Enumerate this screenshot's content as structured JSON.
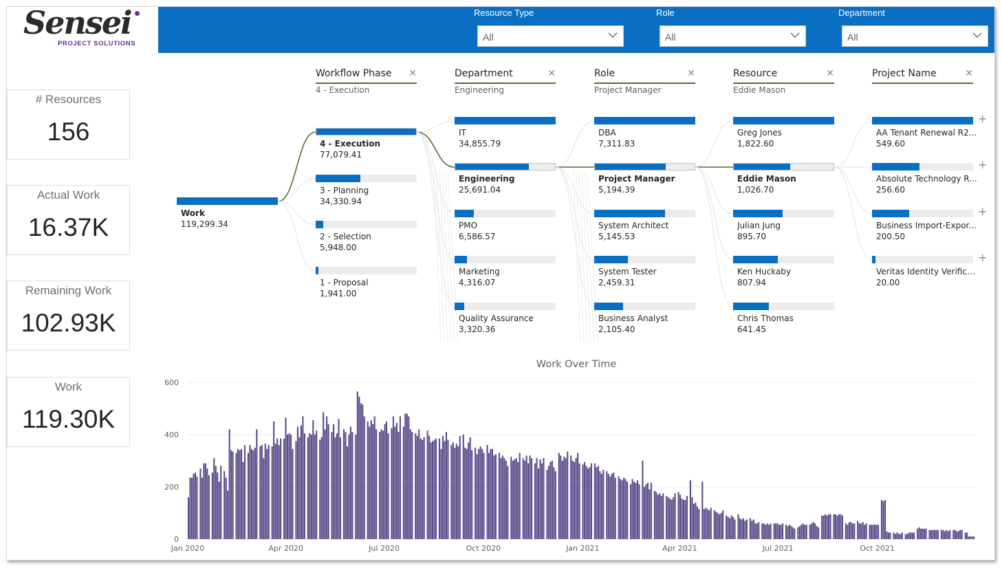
{
  "logo": {
    "text": "Sensei",
    "sub": "PROJECT SOLUTIONS"
  },
  "filters": [
    {
      "label": "Resource Type",
      "value": "All"
    },
    {
      "label": "Role",
      "value": "All"
    },
    {
      "label": "Department",
      "value": "All"
    }
  ],
  "kpis": [
    {
      "label": "# Resources",
      "value": "156"
    },
    {
      "label": "Actual Work",
      "value": "16.37K"
    },
    {
      "label": "Remaining Work",
      "value": "102.93K"
    },
    {
      "label": "Work",
      "value": "119.30K"
    }
  ],
  "colors": {
    "header": "#0a6fc2",
    "bar_fill": "#0a6fc2",
    "chart_bar": "#5b4b8a",
    "link": "#4c6e33"
  },
  "decomposition": {
    "root": {
      "label": "Work",
      "value": "119,299.34",
      "fill": 1.0
    },
    "columns": [
      {
        "title": "Workflow Phase",
        "selected": "4 - Execution",
        "nodes": [
          {
            "label": "4 - Execution",
            "value": "77,079.41",
            "fill": 1.0,
            "selected": true
          },
          {
            "label": "3 - Planning",
            "value": "34,330.94",
            "fill": 0.445
          },
          {
            "label": "2 - Selection",
            "value": "5,948.00",
            "fill": 0.077
          },
          {
            "label": "1 - Proposal",
            "value": "1,941.00",
            "fill": 0.025
          }
        ]
      },
      {
        "title": "Department",
        "selected": "Engineering",
        "nodes": [
          {
            "label": "IT",
            "value": "34,855.79",
            "fill": 1.0
          },
          {
            "label": "Engineering",
            "value": "25,691.04",
            "fill": 0.737,
            "selected": true
          },
          {
            "label": "PMO",
            "value": "6,586.57",
            "fill": 0.189
          },
          {
            "label": "Marketing",
            "value": "4,316.07",
            "fill": 0.124
          },
          {
            "label": "Quality Assurance",
            "value": "3,320.36",
            "fill": 0.095
          }
        ]
      },
      {
        "title": "Role",
        "selected": "Project Manager",
        "nodes": [
          {
            "label": "DBA",
            "value": "7,311.83",
            "fill": 1.0
          },
          {
            "label": "Project Manager",
            "value": "5,194.39",
            "fill": 0.71,
            "selected": true
          },
          {
            "label": "System Architect",
            "value": "5,145.53",
            "fill": 0.704
          },
          {
            "label": "System Tester",
            "value": "2,459.31",
            "fill": 0.336
          },
          {
            "label": "Business Analyst",
            "value": "2,105.40",
            "fill": 0.288
          }
        ]
      },
      {
        "title": "Resource",
        "selected": "Eddie Mason",
        "nodes": [
          {
            "label": "Greg Jones",
            "value": "1,822.60",
            "fill": 1.0
          },
          {
            "label": "Eddie Mason",
            "value": "1,026.70",
            "fill": 0.563,
            "selected": true
          },
          {
            "label": "Julian Jung",
            "value": "895.70",
            "fill": 0.491
          },
          {
            "label": "Ken Huckaby",
            "value": "807.94",
            "fill": 0.443
          },
          {
            "label": "Chris Thomas",
            "value": "641.45",
            "fill": 0.352
          }
        ]
      },
      {
        "title": "Project Name",
        "selected": "",
        "nodes": [
          {
            "label": "AA Tenant Renewal R2...",
            "value": "549.60",
            "fill": 1.0,
            "plus": "+"
          },
          {
            "label": "Absolute Technology R...",
            "value": "256.60",
            "fill": 0.467,
            "plus": "+"
          },
          {
            "label": "Business Import-Expor...",
            "value": "200.50",
            "fill": 0.365,
            "plus": "+"
          },
          {
            "label": "Veritas Identity Verifica...",
            "value": "20.00",
            "fill": 0.036,
            "plus": "+"
          }
        ]
      }
    ]
  },
  "chart_data": {
    "type": "bar",
    "title": "Work Over Time",
    "ylim": [
      0,
      600
    ],
    "yticks": [
      0,
      200,
      400,
      600
    ],
    "xtick_labels": [
      "Jan 2020",
      "Apr 2020",
      "Jul 2020",
      "Oct 2020",
      "Jan 2021",
      "Apr 2021",
      "Jul 2021",
      "Oct 2021"
    ],
    "x_range": [
      "2020-01-01",
      "2021-12-31"
    ],
    "grid": true,
    "weekly_bars": [
      [
        160,
        235,
        235,
        250,
        255,
        240
      ],
      [
        270,
        235,
        290,
        290,
        270,
        245
      ],
      [
        255,
        310,
        280,
        255,
        220,
        280
      ],
      [
        260,
        235,
        185,
        420,
        340,
        335
      ],
      [
        330,
        345,
        340,
        345,
        295,
        360
      ],
      [
        330,
        360,
        345,
        340,
        350,
        420
      ],
      [
        355,
        360,
        310,
        365,
        345,
        360
      ],
      [
        355,
        450,
        365,
        385,
        360,
        385
      ],
      [
        385,
        465,
        400,
        405,
        400,
        345
      ],
      [
        375,
        430,
        390,
        435,
        470,
        405
      ],
      [
        390,
        405,
        400,
        455,
        400,
        415
      ],
      [
        380,
        390,
        485,
        420,
        470,
        440
      ],
      [
        410,
        440,
        390,
        405,
        460,
        390
      ],
      [
        420,
        410,
        355,
        400,
        430,
        410
      ],
      [
        400,
        565,
        545,
        520,
        515,
        470
      ],
      [
        450,
        430,
        455,
        440,
        470,
        420
      ],
      [
        410,
        420,
        415,
        440,
        450,
        405
      ],
      [
        425,
        470,
        430,
        445,
        410,
        470
      ],
      [
        430,
        480,
        480,
        470,
        420,
        410
      ],
      [
        405,
        395,
        420,
        385,
        380,
        390
      ],
      [
        415,
        395,
        370,
        375,
        380,
        385
      ],
      [
        385,
        345,
        395,
        375,
        410,
        380
      ],
      [
        360,
        370,
        350,
        365,
        355,
        395
      ],
      [
        400,
        350,
        345,
        370,
        390,
        340
      ],
      [
        350,
        325,
        345,
        355,
        345,
        330
      ],
      [
        360,
        330,
        345,
        345,
        320,
        325
      ],
      [
        330,
        310,
        320,
        310,
        300,
        280
      ],
      [
        315,
        300,
        305,
        310,
        295,
        330
      ],
      [
        310,
        300,
        320,
        290,
        320,
        310
      ],
      [
        290,
        310,
        270,
        305,
        290,
        310
      ],
      [
        265,
        280,
        295,
        300,
        275,
        260
      ],
      [
        330,
        320,
        300,
        315,
        310,
        335
      ],
      [
        320,
        300,
        295,
        310,
        330,
        290
      ],
      [
        285,
        295,
        280,
        270,
        275,
        290
      ],
      [
        290,
        275,
        280,
        260,
        250,
        265
      ],
      [
        260,
        250,
        240,
        250,
        255,
        235
      ],
      [
        240,
        230,
        225,
        235,
        230,
        220
      ],
      [
        210,
        230,
        220,
        215,
        225,
        210
      ],
      [
        300,
        200,
        210,
        215,
        190,
        215
      ],
      [
        185,
        180,
        170,
        175,
        165,
        175
      ],
      [
        165,
        160,
        155,
        150,
        160,
        175
      ],
      [
        180,
        170,
        155,
        150,
        150,
        165
      ],
      [
        225,
        160,
        135,
        140,
        125,
        115
      ],
      [
        220,
        115,
        120,
        115,
        110,
        120
      ],
      [
        110,
        105,
        100,
        95,
        100,
        110
      ],
      [
        90,
        85,
        80,
        90,
        85,
        75
      ],
      [
        95,
        80,
        75,
        80,
        70,
        75
      ],
      [
        80,
        70,
        75,
        60,
        60,
        65
      ],
      [
        60,
        60,
        55,
        60,
        55,
        60
      ],
      [
        60,
        60,
        60,
        55,
        55,
        60
      ],
      [
        55,
        50,
        55,
        50,
        45,
        40
      ],
      [
        45,
        50,
        55,
        60,
        55,
        55
      ],
      [
        55,
        60,
        65,
        60,
        50,
        45
      ],
      [
        90,
        90,
        95,
        90,
        95,
        95
      ],
      [
        95,
        95,
        90,
        95,
        95,
        90
      ],
      [
        60,
        55,
        65,
        65,
        60,
        60
      ],
      [
        70,
        60,
        60,
        65,
        55,
        60
      ],
      [
        55,
        55,
        55,
        55,
        55,
        55
      ],
      [
        150,
        145,
        150,
        30,
        25,
        25
      ],
      [
        25,
        20,
        25,
        20,
        20,
        25
      ],
      [
        20,
        20,
        25,
        25,
        25,
        25
      ],
      [
        40,
        45,
        40,
        40,
        40,
        40
      ],
      [
        35,
        35,
        35,
        35,
        35,
        35
      ],
      [
        35,
        35,
        30,
        35,
        30,
        35
      ],
      [
        35,
        35,
        30,
        30,
        35,
        35
      ],
      [
        25,
        25,
        10,
        10,
        10,
        10
      ]
    ]
  }
}
